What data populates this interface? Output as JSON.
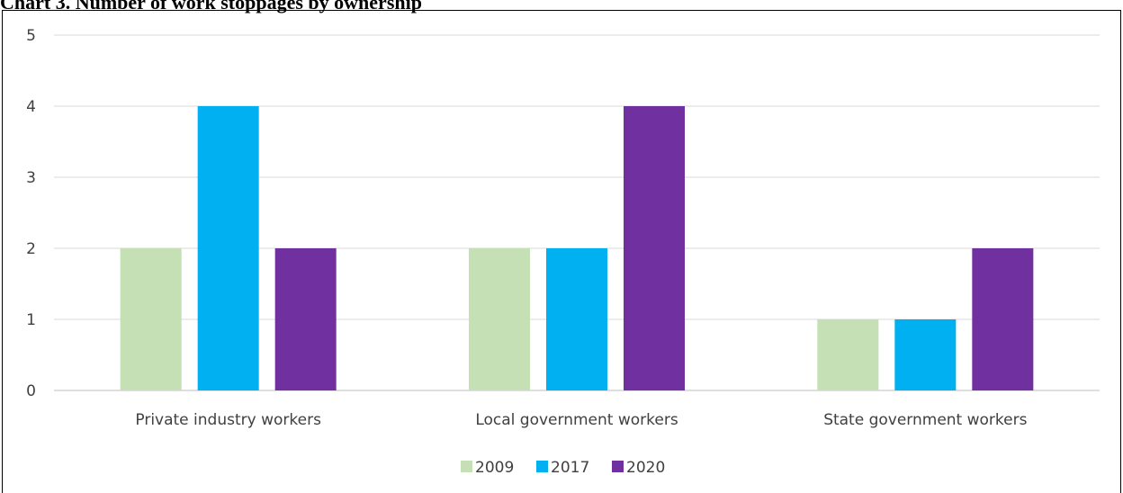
{
  "chart_data": {
    "type": "bar",
    "title": "Chart 3. Number of work stoppages by ownership",
    "categories": [
      "Private industry workers",
      "Local government workers",
      "State government workers"
    ],
    "series": [
      {
        "name": "2009",
        "values": [
          2,
          2,
          1
        ],
        "color": "#C5E0B4"
      },
      {
        "name": "2017",
        "values": [
          4,
          2,
          1
        ],
        "color": "#00B0F0"
      },
      {
        "name": "2020",
        "values": [
          2,
          4,
          2
        ],
        "color": "#7030A0"
      }
    ],
    "yticks": [
      "0",
      "1",
      "2",
      "3",
      "4",
      "5"
    ],
    "ylim": [
      0,
      5
    ],
    "grid": true,
    "legend_position": "bottom"
  }
}
